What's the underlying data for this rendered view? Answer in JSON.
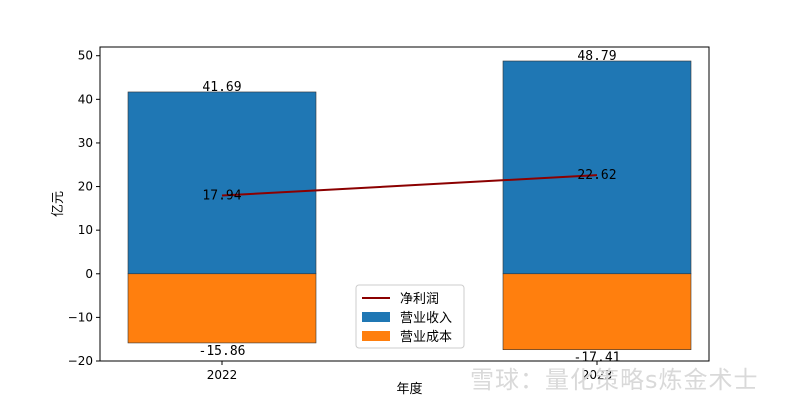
{
  "chart_data": {
    "type": "bar",
    "categories": [
      "2022",
      "2023"
    ],
    "series": [
      {
        "name": "营业收入",
        "kind": "bar",
        "color": "#1f77b4",
        "values": [
          41.69,
          48.79
        ]
      },
      {
        "name": "营业成本",
        "kind": "bar",
        "color": "#ff7f0e",
        "values": [
          -15.86,
          -17.41
        ]
      },
      {
        "name": "净利润",
        "kind": "line",
        "color": "#8b0000",
        "values": [
          17.94,
          22.62
        ]
      }
    ],
    "data_labels": {
      "revenue": [
        "41.69",
        "48.79"
      ],
      "cost": [
        "-15.86",
        "-17.41"
      ],
      "profit": [
        "17.94",
        "22.62"
      ]
    },
    "title": "",
    "xlabel": "年度",
    "ylabel": "亿元",
    "ylim": [
      -20,
      52
    ],
    "yticks": [
      -20,
      -10,
      0,
      10,
      20,
      30,
      40,
      50
    ],
    "ytick_labels": [
      "−20",
      "−10",
      "0",
      "10",
      "20",
      "30",
      "40",
      "50"
    ],
    "grid": false,
    "legend_position": "bottom-center",
    "legend": [
      {
        "label": "净利润",
        "kind": "line",
        "color": "#8b0000"
      },
      {
        "label": "营业收入",
        "kind": "bar",
        "color": "#1f77b4"
      },
      {
        "label": "营业成本",
        "kind": "bar",
        "color": "#ff7f0e"
      }
    ]
  },
  "watermark": {
    "text": "雪球：量化策略s炼金术士"
  }
}
